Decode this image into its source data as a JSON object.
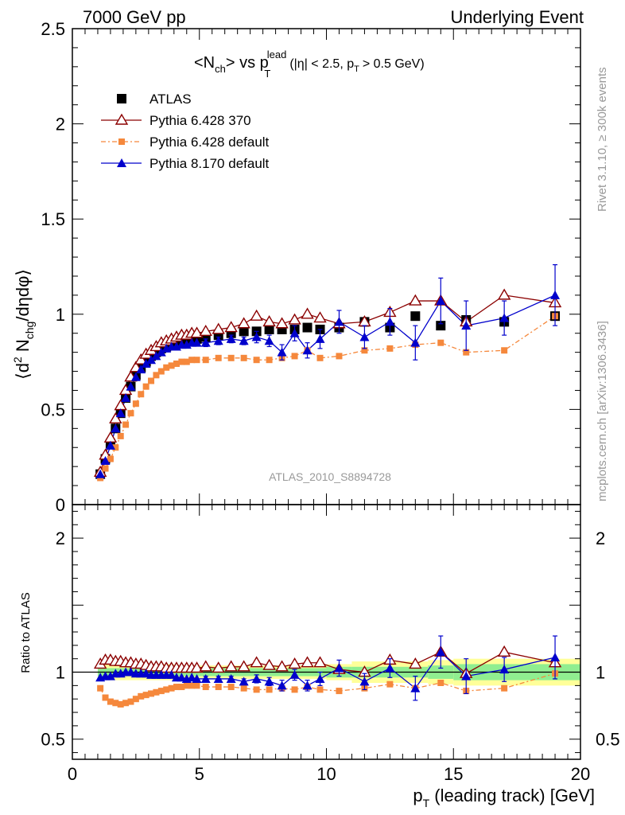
{
  "header": {
    "left": "7000 GeV pp",
    "right": "Underlying Event"
  },
  "plot_title": {
    "main": "<N",
    "main_sub": "ch",
    "vs": "> vs p",
    "vs_sup": "lead",
    "vs_sub": "T",
    "cut_a": "(|η| < 2.5, p",
    "cut_sub": "T",
    "cut_b": "> 0.5 GeV)"
  },
  "side_labels": {
    "rivet": "Rivet 3.1.10, ≥ 300k events",
    "mcplots": "mcplots.cern.ch [arXiv:1306.3436]"
  },
  "watermark": "ATLAS_2010_S8894728",
  "colors": {
    "atlas": "#000000",
    "p6_370": "#8b0000",
    "p6_def": "#f5883c",
    "p8_def": "#0000cc",
    "band_outer": "#ffff99",
    "band_inner": "#90ee90"
  },
  "chart_data": [
    {
      "type": "scatter",
      "ylabel_parts": [
        "⟨d",
        "2",
        " N",
        "chg",
        "/dηdφ⟩"
      ],
      "xlim": [
        0,
        20
      ],
      "ylim": [
        0,
        2.5
      ],
      "yticks": [
        "0",
        "0.5",
        "1",
        "1.5",
        "2",
        "2.5"
      ],
      "legend_position": "top-left",
      "series": [
        {
          "name": "ATLAS",
          "marker": "square",
          "x": [
            1.1,
            1.3,
            1.5,
            1.7,
            1.9,
            2.1,
            2.3,
            2.5,
            2.7,
            2.9,
            3.1,
            3.3,
            3.5,
            3.7,
            3.9,
            4.1,
            4.3,
            4.5,
            4.7,
            4.9,
            5.25,
            5.75,
            6.25,
            6.75,
            7.25,
            7.75,
            8.25,
            8.75,
            9.25,
            9.75,
            10.5,
            11.5,
            12.5,
            13.5,
            14.5,
            15.5,
            17.0,
            19.0
          ],
          "y": [
            0.16,
            0.24,
            0.32,
            0.4,
            0.48,
            0.56,
            0.62,
            0.68,
            0.72,
            0.75,
            0.78,
            0.8,
            0.82,
            0.83,
            0.84,
            0.85,
            0.86,
            0.86,
            0.87,
            0.87,
            0.88,
            0.89,
            0.9,
            0.91,
            0.91,
            0.92,
            0.92,
            0.92,
            0.93,
            0.92,
            0.93,
            0.96,
            0.93,
            0.99,
            0.94,
            0.97,
            0.96,
            0.99
          ]
        },
        {
          "name": "Pythia 6.428 370",
          "marker": "open-triangle",
          "x": [
            1.1,
            1.3,
            1.5,
            1.7,
            1.9,
            2.1,
            2.3,
            2.5,
            2.7,
            2.9,
            3.1,
            3.3,
            3.5,
            3.7,
            3.9,
            4.1,
            4.3,
            4.5,
            4.7,
            4.9,
            5.25,
            5.75,
            6.25,
            6.75,
            7.25,
            7.75,
            8.25,
            8.75,
            9.25,
            9.75,
            10.5,
            11.5,
            12.5,
            13.5,
            14.5,
            15.5,
            17.0,
            19.0
          ],
          "y": [
            0.17,
            0.26,
            0.35,
            0.45,
            0.52,
            0.6,
            0.67,
            0.72,
            0.76,
            0.79,
            0.81,
            0.83,
            0.85,
            0.86,
            0.87,
            0.88,
            0.89,
            0.89,
            0.9,
            0.9,
            0.91,
            0.92,
            0.93,
            0.95,
            0.99,
            0.96,
            0.95,
            0.97,
            1.0,
            0.98,
            0.95,
            0.96,
            1.01,
            1.07,
            1.07,
            0.96,
            1.1,
            1.06
          ]
        },
        {
          "name": "Pythia 6.428 default",
          "marker": "filled-square-small",
          "x": [
            1.1,
            1.3,
            1.5,
            1.7,
            1.9,
            2.1,
            2.3,
            2.5,
            2.7,
            2.9,
            3.1,
            3.3,
            3.5,
            3.7,
            3.9,
            4.1,
            4.3,
            4.5,
            4.7,
            4.9,
            5.25,
            5.75,
            6.25,
            6.75,
            7.25,
            7.75,
            8.25,
            8.75,
            9.25,
            9.75,
            10.5,
            11.5,
            12.5,
            13.5,
            14.5,
            15.5,
            17.0,
            19.0
          ],
          "y": [
            0.14,
            0.19,
            0.24,
            0.3,
            0.36,
            0.42,
            0.48,
            0.53,
            0.58,
            0.62,
            0.65,
            0.68,
            0.7,
            0.72,
            0.73,
            0.74,
            0.75,
            0.75,
            0.76,
            0.76,
            0.76,
            0.77,
            0.77,
            0.77,
            0.76,
            0.76,
            0.77,
            0.78,
            0.81,
            0.77,
            0.78,
            0.81,
            0.82,
            0.84,
            0.85,
            0.8,
            0.81,
            0.99
          ]
        },
        {
          "name": "Pythia 8.170 default",
          "marker": "filled-triangle",
          "x": [
            1.1,
            1.3,
            1.5,
            1.7,
            1.9,
            2.1,
            2.3,
            2.5,
            2.7,
            2.9,
            3.1,
            3.3,
            3.5,
            3.7,
            3.9,
            4.1,
            4.3,
            4.5,
            4.7,
            4.9,
            5.25,
            5.75,
            6.25,
            6.75,
            7.25,
            7.75,
            8.25,
            8.75,
            9.25,
            9.75,
            10.5,
            11.5,
            12.5,
            13.5,
            14.5,
            15.5,
            17.0,
            19.0
          ],
          "y": [
            0.16,
            0.23,
            0.31,
            0.4,
            0.48,
            0.56,
            0.62,
            0.67,
            0.71,
            0.74,
            0.76,
            0.78,
            0.8,
            0.82,
            0.83,
            0.83,
            0.84,
            0.84,
            0.85,
            0.85,
            0.85,
            0.86,
            0.87,
            0.86,
            0.88,
            0.86,
            0.8,
            0.9,
            0.81,
            0.87,
            0.96,
            0.88,
            0.96,
            0.85,
            1.07,
            0.94,
            0.98,
            1.1
          ],
          "yerr": [
            0,
            0,
            0,
            0,
            0,
            0,
            0,
            0,
            0,
            0,
            0,
            0,
            0,
            0,
            0,
            0,
            0,
            0,
            0,
            0,
            0.02,
            0.02,
            0.02,
            0.02,
            0.03,
            0.03,
            0.04,
            0.04,
            0.04,
            0.05,
            0.06,
            0.06,
            0.07,
            0.09,
            0.12,
            0.13,
            0.09,
            0.16
          ]
        }
      ]
    },
    {
      "type": "scatter",
      "ylabel": "Ratio to ATLAS",
      "xlabel_main": "p",
      "xlabel_sub": "T",
      "xlabel_rest": " (leading track) [GeV]",
      "xlim": [
        0,
        20
      ],
      "ylim": [
        0.35,
        2.25
      ],
      "yticks": [
        "0.5",
        "1",
        "2"
      ],
      "xticks": [
        "0",
        "5",
        "10",
        "15",
        "20"
      ],
      "band_x": [
        1.0,
        4.0,
        5.0,
        10.0,
        11.0,
        14.0,
        15.0,
        20.0
      ],
      "band_outer_halfwidth": [
        0.06,
        0.05,
        0.05,
        0.06,
        0.08,
        0.09,
        0.1,
        0.09
      ],
      "band_inner_halfwidth": [
        0.03,
        0.03,
        0.03,
        0.04,
        0.04,
        0.05,
        0.06,
        0.06
      ],
      "series": [
        {
          "name": "Pythia 6.428 370",
          "x": [
            1.1,
            1.3,
            1.5,
            1.7,
            1.9,
            2.1,
            2.3,
            2.5,
            2.7,
            2.9,
            3.1,
            3.3,
            3.5,
            3.7,
            3.9,
            4.1,
            4.3,
            4.5,
            4.7,
            4.9,
            5.25,
            5.75,
            6.25,
            6.75,
            7.25,
            7.75,
            8.25,
            8.75,
            9.25,
            9.75,
            10.5,
            11.5,
            12.5,
            13.5,
            14.5,
            15.5,
            17.0,
            19.0
          ],
          "y": [
            1.06,
            1.09,
            1.09,
            1.08,
            1.08,
            1.07,
            1.07,
            1.06,
            1.06,
            1.05,
            1.04,
            1.04,
            1.04,
            1.03,
            1.03,
            1.03,
            1.03,
            1.03,
            1.03,
            1.03,
            1.04,
            1.03,
            1.04,
            1.04,
            1.07,
            1.05,
            1.04,
            1.06,
            1.07,
            1.07,
            1.02,
            1.0,
            1.09,
            1.06,
            1.15,
            0.99,
            1.15,
            1.07
          ]
        },
        {
          "name": "Pythia 6.428 default",
          "x": [
            1.1,
            1.3,
            1.5,
            1.7,
            1.9,
            2.1,
            2.3,
            2.5,
            2.7,
            2.9,
            3.1,
            3.3,
            3.5,
            3.7,
            3.9,
            4.1,
            4.3,
            4.5,
            4.7,
            4.9,
            5.25,
            5.75,
            6.25,
            6.75,
            7.25,
            7.75,
            8.25,
            8.75,
            9.25,
            9.75,
            10.5,
            11.5,
            12.5,
            13.5,
            14.5,
            15.5,
            17.0,
            19.0
          ],
          "y": [
            0.88,
            0.81,
            0.78,
            0.77,
            0.76,
            0.77,
            0.78,
            0.8,
            0.82,
            0.83,
            0.84,
            0.85,
            0.86,
            0.87,
            0.88,
            0.89,
            0.89,
            0.9,
            0.9,
            0.9,
            0.89,
            0.89,
            0.89,
            0.88,
            0.87,
            0.87,
            0.88,
            0.87,
            0.89,
            0.87,
            0.86,
            0.88,
            0.91,
            0.88,
            0.92,
            0.86,
            0.88,
            0.99
          ]
        },
        {
          "name": "Pythia 8.170 default",
          "x": [
            1.1,
            1.3,
            1.5,
            1.7,
            1.9,
            2.1,
            2.3,
            2.5,
            2.7,
            2.9,
            3.1,
            3.3,
            3.5,
            3.7,
            3.9,
            4.1,
            4.3,
            4.5,
            4.7,
            4.9,
            5.25,
            5.75,
            6.25,
            6.75,
            7.25,
            7.75,
            8.25,
            8.75,
            9.25,
            9.75,
            10.5,
            11.5,
            12.5,
            13.5,
            14.5,
            15.5,
            17.0,
            19.0
          ],
          "y": [
            0.96,
            0.97,
            0.97,
            0.99,
            0.99,
            1.0,
            1.0,
            0.99,
            0.99,
            0.99,
            0.98,
            0.98,
            0.98,
            0.98,
            0.98,
            0.96,
            0.96,
            0.95,
            0.96,
            0.95,
            0.95,
            0.95,
            0.95,
            0.93,
            0.95,
            0.93,
            0.9,
            0.98,
            0.9,
            0.95,
            1.03,
            0.93,
            1.03,
            0.88,
            1.15,
            0.97,
            1.02,
            1.11
          ],
          "yerr": [
            0,
            0,
            0,
            0,
            0,
            0,
            0,
            0,
            0,
            0,
            0,
            0,
            0,
            0,
            0,
            0,
            0,
            0,
            0,
            0,
            0.02,
            0.02,
            0.02,
            0.02,
            0.03,
            0.03,
            0.04,
            0.04,
            0.04,
            0.05,
            0.06,
            0.06,
            0.07,
            0.09,
            0.12,
            0.13,
            0.09,
            0.16
          ]
        }
      ]
    }
  ]
}
